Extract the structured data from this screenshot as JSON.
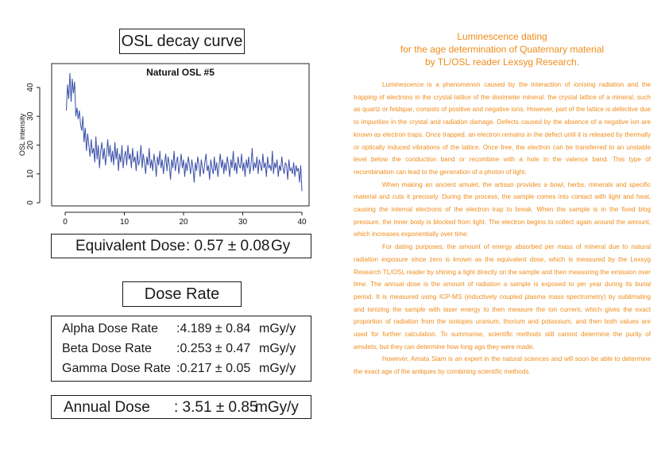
{
  "osl_section": {
    "title": "OSL decay curve"
  },
  "chart_data": {
    "type": "line",
    "title": "Natural OSL #5",
    "xlabel": "",
    "ylabel": "OSL intensity",
    "xlim": [
      0,
      40
    ],
    "ylim": [
      0,
      45
    ],
    "xticks": [
      "0",
      "10",
      "20",
      "30",
      "40"
    ],
    "yticks": [
      "0",
      "10",
      "20",
      "30",
      "40"
    ],
    "grid": false,
    "color": "#3a4fa8",
    "series": [
      {
        "x": [
          0.2,
          0.4,
          0.6,
          0.8,
          1.0,
          1.2,
          1.4,
          1.6,
          1.8,
          2.0,
          2.2,
          2.4,
          2.6,
          2.8,
          3.0,
          3.2,
          3.4,
          3.6,
          3.8,
          4.0,
          4.2,
          4.4,
          4.6,
          4.8,
          5.0,
          5.2,
          5.4,
          5.6,
          5.8,
          6.0,
          6.2,
          6.4,
          6.6,
          6.8,
          7.0,
          7.2,
          7.4,
          7.6,
          7.8,
          8.0,
          8.2,
          8.4,
          8.6,
          8.8,
          9.0,
          9.2,
          9.4,
          9.6,
          9.8,
          10.0,
          10.2,
          10.4,
          10.6,
          10.8,
          11.0,
          11.2,
          11.4,
          11.6,
          11.8,
          12.0,
          12.2,
          12.4,
          12.6,
          12.8,
          13.0,
          13.2,
          13.4,
          13.6,
          13.8,
          14.0,
          14.2,
          14.4,
          14.6,
          14.8,
          15.0,
          15.2,
          15.4,
          15.6,
          15.8,
          16.0,
          16.2,
          16.4,
          16.6,
          16.8,
          17.0,
          17.2,
          17.4,
          17.6,
          17.8,
          18.0,
          18.2,
          18.4,
          18.6,
          18.8,
          19.0,
          19.2,
          19.4,
          19.6,
          19.8,
          20.0,
          20.2,
          20.4,
          20.6,
          20.8,
          21.0,
          21.2,
          21.4,
          21.6,
          21.8,
          22.0,
          22.2,
          22.4,
          22.6,
          22.8,
          23.0,
          23.2,
          23.4,
          23.6,
          23.8,
          24.0,
          24.2,
          24.4,
          24.6,
          24.8,
          25.0,
          25.2,
          25.4,
          25.6,
          25.8,
          26.0,
          26.2,
          26.4,
          26.6,
          26.8,
          27.0,
          27.2,
          27.4,
          27.6,
          27.8,
          28.0,
          28.2,
          28.4,
          28.6,
          28.8,
          29.0,
          29.2,
          29.4,
          29.6,
          29.8,
          30.0,
          30.2,
          30.4,
          30.6,
          30.8,
          31.0,
          31.2,
          31.4,
          31.6,
          31.8,
          32.0,
          32.2,
          32.4,
          32.6,
          32.8,
          33.0,
          33.2,
          33.4,
          33.6,
          33.8,
          34.0,
          34.2,
          34.4,
          34.6,
          34.8,
          35.0,
          35.2,
          35.4,
          35.6,
          35.8,
          36.0,
          36.2,
          36.4,
          36.6,
          36.8,
          37.0,
          37.2,
          37.4,
          37.6,
          37.8,
          38.0,
          38.2,
          38.4,
          38.6,
          38.8,
          39.0,
          39.2,
          39.4,
          39.6,
          39.8,
          40.0
        ],
        "y": [
          32,
          41,
          36,
          45,
          35,
          43,
          38,
          42,
          30,
          33,
          29,
          32,
          27,
          25,
          30,
          21,
          26,
          18,
          24,
          20,
          16,
          22,
          17,
          19,
          14,
          23,
          15,
          20,
          12,
          18,
          21,
          15,
          19,
          13,
          17,
          22,
          16,
          20,
          14,
          18,
          13,
          21,
          15,
          19,
          11,
          17,
          14,
          20,
          12,
          16,
          18,
          13,
          20,
          15,
          17,
          12,
          19,
          14,
          16,
          11,
          18,
          13,
          15,
          20,
          12,
          17,
          14,
          10,
          16,
          13,
          19,
          12,
          15,
          11,
          17,
          14,
          9,
          16,
          13,
          18,
          12,
          15,
          10,
          14,
          17,
          11,
          16,
          13,
          8,
          15,
          12,
          18,
          11,
          14,
          16,
          10,
          13,
          17,
          12,
          15,
          9,
          14,
          11,
          16,
          13,
          10,
          15,
          12,
          7,
          14,
          11,
          16,
          13,
          9,
          15,
          12,
          10,
          14,
          17,
          11,
          13,
          8,
          15,
          12,
          10,
          16,
          11,
          14,
          9,
          13,
          17,
          12,
          15,
          10,
          14,
          11,
          16,
          13,
          9,
          15,
          12,
          18,
          11,
          14,
          10,
          16,
          13,
          12,
          17,
          11,
          14,
          9,
          15,
          12,
          16,
          10,
          13,
          19,
          11,
          14,
          12,
          16,
          10,
          15,
          13,
          11,
          17,
          12,
          14,
          9,
          16,
          12,
          13,
          11,
          18,
          10,
          14,
          12,
          15,
          9,
          13,
          11,
          16,
          12,
          10,
          14,
          13,
          8,
          15,
          11,
          12,
          10,
          14,
          9,
          13,
          11,
          12,
          7,
          13,
          4
        ]
      }
    ]
  },
  "equivalent_dose": {
    "label": "Equivalent Dose",
    "value": ": 0.57 ± 0.08",
    "unit": "Gy"
  },
  "dose_rate": {
    "title": "Dose Rate",
    "rows": [
      {
        "label": "Alpha Dose Rate",
        "value": ":4.189 ± 0.84",
        "unit": "mGy/y"
      },
      {
        "label": "Beta Dose Rate",
        "value": ":0.253 ± 0.47",
        "unit": "mGy/y"
      },
      {
        "label": "Gamma Dose Rate",
        "value": ":0.217 ± 0.05",
        "unit": "mGy/y"
      }
    ]
  },
  "annual_dose": {
    "label": "Annual Dose",
    "value": ": 3.51 ± 0.85",
    "unit": "mGy/y"
  },
  "article": {
    "title_lines": [
      "Luminescence dating",
      "for the age determination of Quaternary material",
      "by TL/OSL reader Lexsyg Research."
    ],
    "paragraphs": [
      "Luminescence is a phenomenon caused by the interaction of ionising radiation and the trapping of electrons in the crystal lattice of the dosimeter mineral. the crystal lattice of a mineral, such as quartz or feldspar, consists of positive and negative ions. However, part of the lattice is defective due to impurities in the crystal and radiation damage. Defects caused by the absence of a negative ion are known as electron traps. Once trapped, an electron remains in the defect until it is released by thermally or optically induced vibrations of the lattice. Once free, the electron can be transferred to an unstable level below the conduction band or recombine with a hole in the valence band. This type of recombination can lead to the generation of a photon of light.",
      "When making an ancient amulet, the artisan provides a bowl, herbs, minerals and specific material and cuts it precisely. During the process, the sample comes into contact with light and heat, causing the internal electrons of the electron trap to break. When the sample is in the fixed blog pressure, the inner body is blocked from light. The electron begins to collect again around the amount, which increases exponentially over time.",
      "For dating purposes, the amount of energy absorbed per mass of mineral due to natural radiation exposure since zero is known as the equivalent dose, which is measured by the Lexsyg Research TL/OSL reader by shining a light directly on the sample and then measuring the emission over time. The annual dose is the amount of radiation a sample is exposed to per year during its burial period. It is measured using ICP-MS (inductively coupled plasma mass spectrometry) by sublimating and ionizing the sample with laser energy to then measure the ion current, which gives the exact proportion of radiation from the isotopes uranium, thorium and potassium, and then both values are used for further calculation. To summarise, scientific methods still cannot determine the purity of amulets, but they can determine how long ago they were made.",
      "However, Amata Siam is an expert in the natural sciences and will soon be able to determine the exact age of the antiques by combining scientific methods."
    ]
  }
}
